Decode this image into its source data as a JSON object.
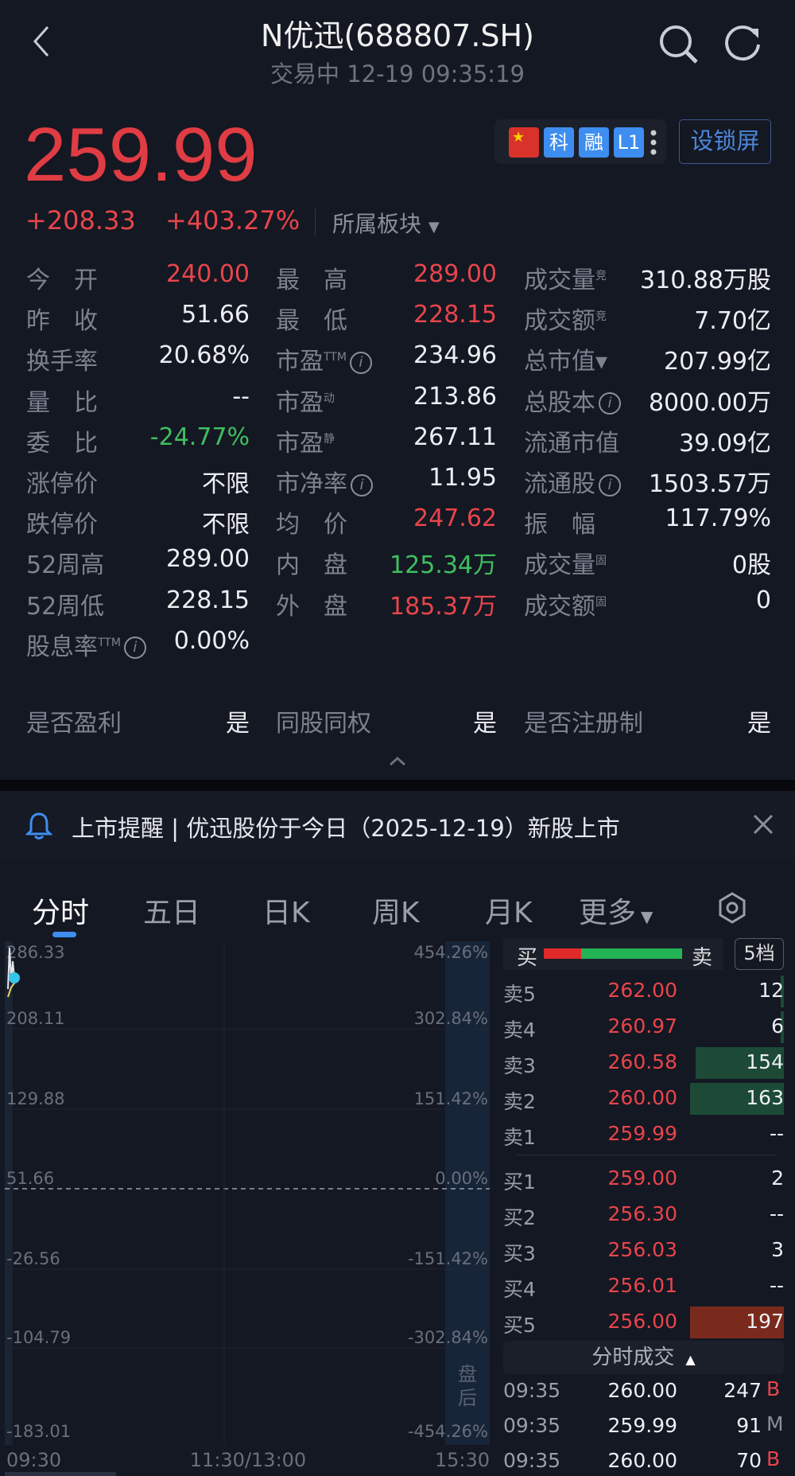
{
  "header": {
    "title": "N优迅(688807.SH)",
    "subtitle": "交易中 12-19 09:35:19"
  },
  "quote": {
    "price": "259.99",
    "change": "+208.33",
    "change_pct": "+403.27%",
    "sector_label": "所属板块",
    "badges": [
      "科",
      "融",
      "L1"
    ],
    "lock_label": "设锁屏"
  },
  "stats": [
    [
      {
        "l": "今　开",
        "v": "240.00",
        "c": "red"
      },
      {
        "l": "最　高",
        "v": "289.00",
        "c": "red"
      },
      {
        "l": "成交量",
        "sup": "竞",
        "v": "310.88万股",
        "c": "white"
      }
    ],
    [
      {
        "l": "昨　收",
        "v": "51.66",
        "c": "white"
      },
      {
        "l": "最　低",
        "v": "228.15",
        "c": "red"
      },
      {
        "l": "成交额",
        "sup": "竞",
        "v": "7.70亿",
        "c": "white"
      }
    ],
    [
      {
        "l": "换手率",
        "v": "20.68%",
        "c": "white"
      },
      {
        "l": "市盈",
        "sup": "TTM",
        "info": true,
        "v": "234.96",
        "c": "white"
      },
      {
        "l": "总市值▾",
        "v": "207.99亿",
        "c": "white"
      }
    ],
    [
      {
        "l": "量　比",
        "v": "--",
        "c": "white"
      },
      {
        "l": "市盈",
        "sup": "动",
        "v": "213.86",
        "c": "white"
      },
      {
        "l": "总股本",
        "info": true,
        "v": "8000.00万",
        "c": "white"
      }
    ],
    [
      {
        "l": "委　比",
        "v": "-24.77%",
        "c": "green"
      },
      {
        "l": "市盈",
        "sup": "静",
        "v": "267.11",
        "c": "white"
      },
      {
        "l": "流通市值",
        "v": "39.09亿",
        "c": "white"
      }
    ],
    [
      {
        "l": "涨停价",
        "v": "不限",
        "c": "white"
      },
      {
        "l": "市净率",
        "info": true,
        "v": "11.95",
        "c": "white"
      },
      {
        "l": "流通股",
        "info": true,
        "v": "1503.57万",
        "c": "white"
      }
    ],
    [
      {
        "l": "跌停价",
        "v": "不限",
        "c": "white"
      },
      {
        "l": "均　价",
        "v": "247.62",
        "c": "red"
      },
      {
        "l": "振　幅",
        "v": "117.79%",
        "c": "white"
      }
    ],
    [
      {
        "l": "52周高",
        "v": "289.00",
        "c": "white"
      },
      {
        "l": "内　盘",
        "v": "125.34万",
        "c": "green"
      },
      {
        "l": "成交量",
        "sup": "固",
        "v": "0股",
        "c": "white"
      }
    ],
    [
      {
        "l": "52周低",
        "v": "228.15",
        "c": "white"
      },
      {
        "l": "外　盘",
        "v": "185.37万",
        "c": "red"
      },
      {
        "l": "成交额",
        "sup": "固",
        "v": "0",
        "c": "white"
      }
    ],
    [
      {
        "l": "股息率",
        "sup": "TTM",
        "info": true,
        "v": "0.00%",
        "c": "white"
      }
    ]
  ],
  "flags": [
    {
      "l": "是否盈利",
      "v": "是"
    },
    {
      "l": "同股同权",
      "v": "是"
    },
    {
      "l": "是否注册制",
      "v": "是"
    }
  ],
  "notice": {
    "text": "上市提醒 | 优迅股份于今日（2025-12-19）新股上市"
  },
  "tabs": [
    "分时",
    "五日",
    "日K",
    "周K",
    "月K",
    "更多"
  ],
  "chart": {
    "left_axis": [
      "286.33",
      "208.11",
      "129.88",
      "51.66",
      "-26.56",
      "-104.79",
      "-183.01"
    ],
    "right_axis": [
      "454.26%",
      "302.84%",
      "151.42%",
      "0.00%",
      "-151.42%",
      "-302.84%",
      "-454.26%"
    ],
    "time_axis": [
      "09:30",
      "11:30/13:00",
      "15:30"
    ],
    "after_hours": "盘后"
  },
  "orderbook": {
    "buy_label": "买",
    "sell_label": "卖",
    "levels_button": "5档",
    "buy_ratio": 0.27,
    "asks": [
      {
        "l": "卖5",
        "p": "262.00",
        "q": "12",
        "bar": 0.02
      },
      {
        "l": "卖4",
        "p": "260.97",
        "q": "6",
        "bar": 0.02
      },
      {
        "l": "卖3",
        "p": "260.58",
        "q": "154",
        "bar": 0.94
      },
      {
        "l": "卖2",
        "p": "260.00",
        "q": "163",
        "bar": 1.0
      },
      {
        "l": "卖1",
        "p": "259.99",
        "q": "--",
        "bar": 0
      }
    ],
    "bids": [
      {
        "l": "买1",
        "p": "259.00",
        "q": "2",
        "bar": 0
      },
      {
        "l": "买2",
        "p": "256.30",
        "q": "--",
        "bar": 0
      },
      {
        "l": "买3",
        "p": "256.03",
        "q": "3",
        "bar": 0
      },
      {
        "l": "买4",
        "p": "256.01",
        "q": "--",
        "bar": 0
      },
      {
        "l": "买5",
        "p": "256.00",
        "q": "197",
        "bar": 1.0
      }
    ],
    "trades_label": "分时成交",
    "trades": [
      {
        "t": "09:35",
        "p": "260.00",
        "q": "247",
        "s": "B"
      },
      {
        "t": "09:35",
        "p": "259.99",
        "q": "91",
        "s": "M"
      },
      {
        "t": "09:35",
        "p": "260.00",
        "q": "70",
        "s": "B"
      }
    ]
  },
  "colors": {
    "up": "#e8454b",
    "down": "#3fbf5f",
    "accent": "#3d8ef0",
    "bg": "#141823"
  }
}
